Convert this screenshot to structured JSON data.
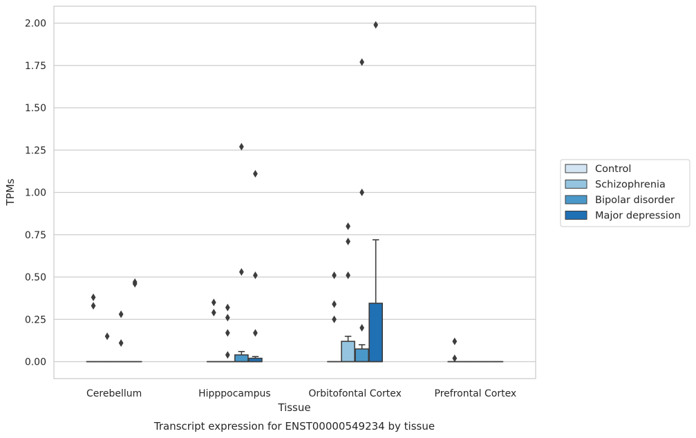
{
  "chart_data": {
    "type": "box",
    "xlabel": "Tissue",
    "ylabel": "TPMs",
    "caption": "Transcript expression for ENST00000549234 by tissue",
    "categories": [
      "Cerebellum",
      "Hipppocampus",
      "Orbitofontal Cortex",
      "Prefrontal Cortex"
    ],
    "ylim": [
      -0.1,
      2.1
    ],
    "yticks": [
      "0.00",
      "0.25",
      "0.50",
      "0.75",
      "1.00",
      "1.25",
      "1.50",
      "1.75",
      "2.00"
    ],
    "grid": true,
    "legend_position": "right",
    "series": [
      {
        "name": "Control",
        "color": "#d3e4f3",
        "boxes": [
          {
            "q1": 0,
            "median": 0,
            "q3": 0,
            "whisker_low": 0,
            "whisker_high": 0,
            "outliers": [
              0.38,
              0.33
            ]
          },
          {
            "q1": 0,
            "median": 0,
            "q3": 0,
            "whisker_low": 0,
            "whisker_high": 0,
            "outliers": [
              0.35,
              0.29
            ]
          },
          {
            "q1": 0,
            "median": 0,
            "q3": 0,
            "whisker_low": 0,
            "whisker_high": 0,
            "outliers": [
              0.51,
              0.34,
              0.25
            ]
          },
          {
            "q1": 0,
            "median": 0,
            "q3": 0,
            "whisker_low": 0,
            "whisker_high": 0,
            "outliers": [
              0.12,
              0.02
            ]
          }
        ]
      },
      {
        "name": "Schizophrenia",
        "color": "#94c4df",
        "boxes": [
          {
            "q1": 0,
            "median": 0,
            "q3": 0,
            "whisker_low": 0,
            "whisker_high": 0,
            "outliers": [
              0.15
            ]
          },
          {
            "q1": 0,
            "median": 0,
            "q3": 0,
            "whisker_low": 0,
            "whisker_high": 0,
            "outliers": [
              0.32,
              0.26,
              0.17,
              0.04
            ]
          },
          {
            "q1": 0,
            "median": 0,
            "q3": 0.12,
            "whisker_low": 0,
            "whisker_high": 0.15,
            "outliers": [
              0.8,
              0.71,
              0.51
            ]
          },
          {
            "q1": 0,
            "median": 0,
            "q3": 0,
            "whisker_low": 0,
            "whisker_high": 0,
            "outliers": []
          }
        ]
      },
      {
        "name": "Bipolar disorder",
        "color": "#4a98c9",
        "boxes": [
          {
            "q1": 0,
            "median": 0,
            "q3": 0,
            "whisker_low": 0,
            "whisker_high": 0,
            "outliers": [
              0.28,
              0.11
            ]
          },
          {
            "q1": 0,
            "median": 0,
            "q3": 0.04,
            "whisker_low": 0,
            "whisker_high": 0.06,
            "outliers": [
              1.27,
              0.53
            ]
          },
          {
            "q1": 0,
            "median": 0,
            "q3": 0.075,
            "whisker_low": 0,
            "whisker_high": 0.1,
            "outliers": [
              1.77,
              1.0,
              0.2
            ]
          },
          {
            "q1": 0,
            "median": 0,
            "q3": 0,
            "whisker_low": 0,
            "whisker_high": 0,
            "outliers": []
          }
        ]
      },
      {
        "name": "Major depression",
        "color": "#2070b4",
        "boxes": [
          {
            "q1": 0,
            "median": 0,
            "q3": 0,
            "whisker_low": 0,
            "whisker_high": 0,
            "outliers": [
              0.47,
              0.46
            ]
          },
          {
            "q1": 0,
            "median": 0,
            "q3": 0.02,
            "whisker_low": 0,
            "whisker_high": 0.03,
            "outliers": [
              1.11,
              0.51,
              0.17
            ]
          },
          {
            "q1": 0,
            "median": 0,
            "q3": 0.345,
            "whisker_low": 0,
            "whisker_high": 0.72,
            "outliers": [
              1.99
            ]
          },
          {
            "q1": 0,
            "median": 0,
            "q3": 0,
            "whisker_low": 0,
            "whisker_high": 0,
            "outliers": []
          }
        ]
      }
    ]
  }
}
